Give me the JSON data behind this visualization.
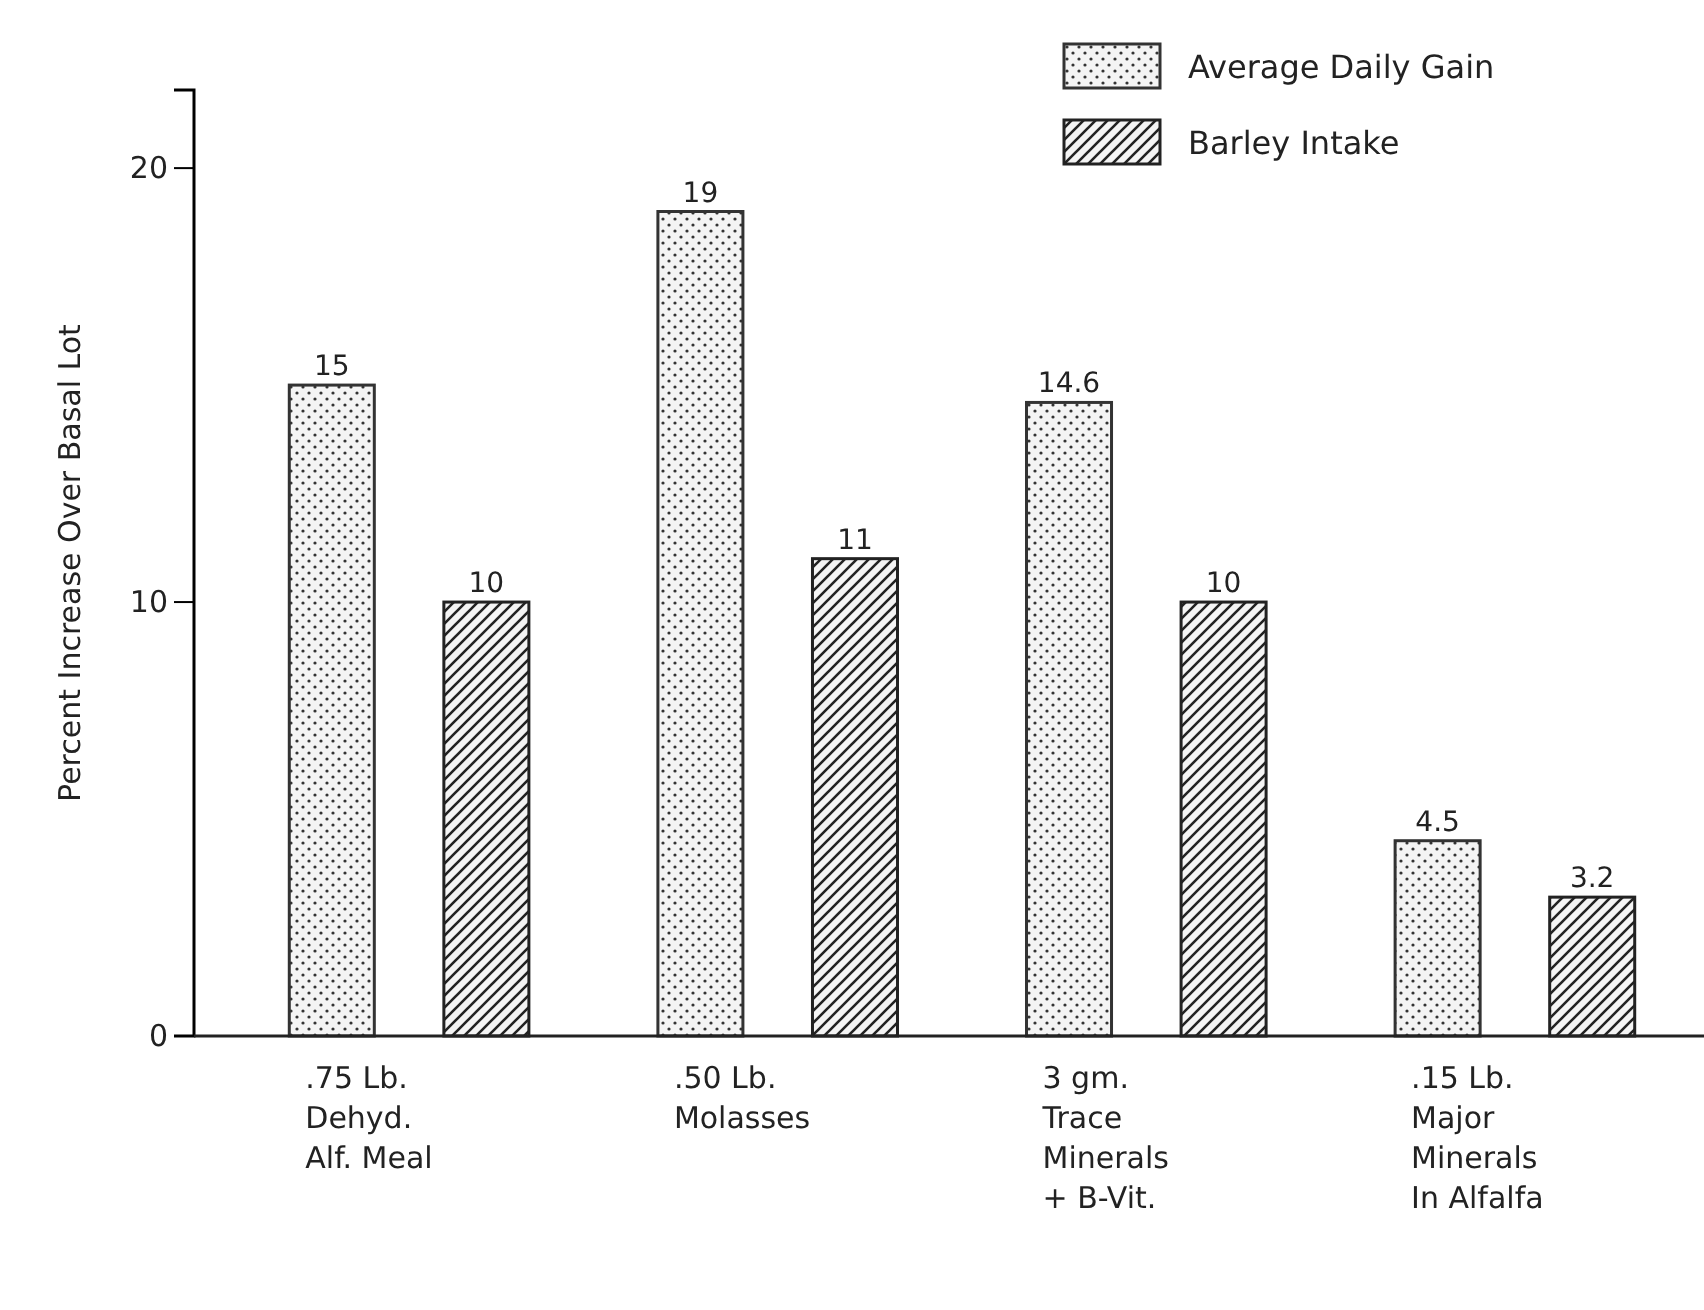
{
  "chart_data": {
    "type": "bar",
    "ylabel": "Percent Increase Over Basal Lot",
    "categories": [
      ".75 Lb.\nDehyd.\nAlf. Meal",
      ".50 Lb.\nMolasses",
      "3 gm.\nTrace\nMinerals\n+ B-Vit.",
      ".15 Lb.\nMajor\nMinerals\nIn Alfalfa"
    ],
    "series": [
      {
        "name": "Average Daily Gain",
        "color": "#333333",
        "values": [
          15,
          19,
          14.6,
          4.5
        ]
      },
      {
        "name": "Barley Intake",
        "color": "#222222",
        "values": [
          10,
          11,
          10,
          3.2
        ]
      }
    ],
    "ylim": [
      0,
      21.8
    ],
    "yticks": [
      0,
      10,
      20
    ],
    "grid": false,
    "legend": "top right",
    "data_labels": true
  }
}
